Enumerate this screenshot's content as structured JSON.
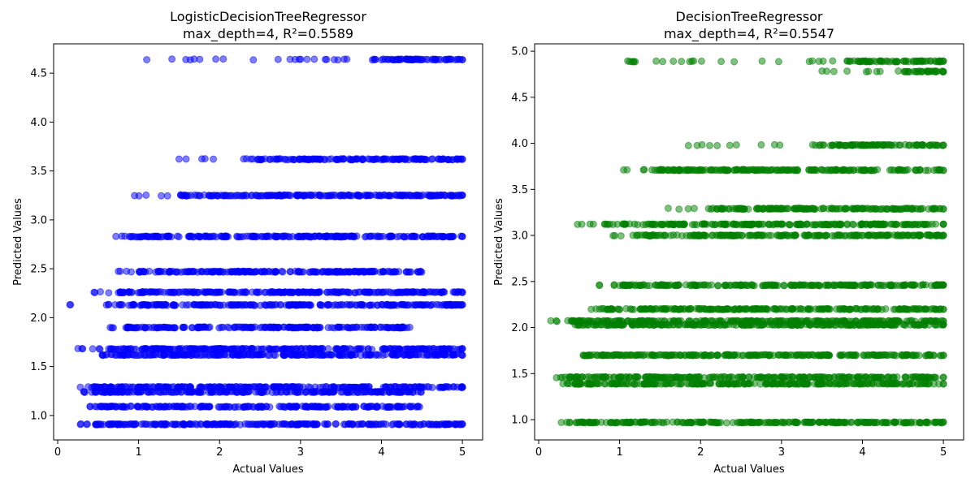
{
  "chart_data": [
    {
      "type": "scatter",
      "title": "LogisticDecisionTreeRegressor",
      "subtitle": "max_depth=4, R²=0.5589",
      "xlabel": "Actual Values",
      "ylabel": "Predicted Values",
      "xlim": [
        -0.05,
        5.25
      ],
      "ylim": [
        0.75,
        4.8
      ],
      "xticks": [
        0,
        1,
        2,
        3,
        4,
        5
      ],
      "yticks": [
        1.0,
        1.5,
        2.0,
        2.5,
        3.0,
        3.5,
        4.0,
        4.5
      ],
      "color": "#0000ff",
      "marker_alpha": 0.5,
      "bands": [
        {
          "y": 4.64,
          "x_min": 1.1,
          "x_max": 5.0,
          "dense_from": 3.9
        },
        {
          "y": 3.62,
          "x_min": 1.5,
          "x_max": 5.0,
          "dense_from": 2.4
        },
        {
          "y": 3.25,
          "x_min": 0.95,
          "x_max": 5.0,
          "dense_from": 1.5
        },
        {
          "y": 2.83,
          "x_min": 0.72,
          "x_max": 5.0,
          "dense_from": 0.9
        },
        {
          "y": 2.47,
          "x_min": 0.75,
          "x_max": 4.5,
          "dense_from": 1.0
        },
        {
          "y": 2.26,
          "x_min": 0.45,
          "x_max": 5.0,
          "dense_from": 0.7
        },
        {
          "y": 2.13,
          "x_min": 0.15,
          "x_max": 5.0,
          "dense_from": 0.75
        },
        {
          "y": 1.9,
          "x_min": 0.65,
          "x_max": 4.35,
          "dense_from": 0.85
        },
        {
          "y": 1.68,
          "x_min": 0.25,
          "x_max": 5.0,
          "dense_from": 0.5
        },
        {
          "y": 1.62,
          "x_min": 0.55,
          "x_max": 5.0,
          "dense_from": 0.6
        },
        {
          "y": 1.29,
          "x_min": 0.28,
          "x_max": 5.0,
          "dense_from": 0.45
        },
        {
          "y": 1.24,
          "x_min": 0.32,
          "x_max": 4.5,
          "dense_from": 0.45
        },
        {
          "y": 1.09,
          "x_min": 0.4,
          "x_max": 4.5,
          "dense_from": 0.5
        },
        {
          "y": 0.91,
          "x_min": 0.28,
          "x_max": 5.0,
          "dense_from": 0.45
        }
      ]
    },
    {
      "type": "scatter",
      "title": "DecisionTreeRegressor",
      "subtitle": "max_depth=4, R²=0.5547",
      "xlabel": "Actual Values",
      "ylabel": "Predicted Values",
      "xlim": [
        -0.05,
        5.25
      ],
      "ylim": [
        0.78,
        5.08
      ],
      "xticks": [
        0,
        1,
        2,
        3,
        4,
        5
      ],
      "yticks": [
        1.0,
        1.5,
        2.0,
        2.5,
        3.0,
        3.5,
        4.0,
        4.5,
        5.0
      ],
      "color": "#008000",
      "marker_alpha": 0.5,
      "bands": [
        {
          "y": 4.89,
          "x_min": 1.1,
          "x_max": 5.0,
          "dense_from": 3.8
        },
        {
          "y": 4.78,
          "x_min": 3.5,
          "x_max": 5.0,
          "dense_from": 4.5
        },
        {
          "y": 3.98,
          "x_min": 1.85,
          "x_max": 5.0,
          "dense_from": 3.5
        },
        {
          "y": 3.71,
          "x_min": 1.05,
          "x_max": 5.0,
          "dense_from": 1.4
        },
        {
          "y": 3.29,
          "x_min": 1.6,
          "x_max": 5.0,
          "dense_from": 2.1
        },
        {
          "y": 3.12,
          "x_min": 0.48,
          "x_max": 5.0,
          "dense_from": 0.8
        },
        {
          "y": 3.0,
          "x_min": 0.92,
          "x_max": 5.0,
          "dense_from": 1.2
        },
        {
          "y": 2.46,
          "x_min": 0.75,
          "x_max": 5.0,
          "dense_from": 1.0
        },
        {
          "y": 2.2,
          "x_min": 0.65,
          "x_max": 5.0,
          "dense_from": 0.8
        },
        {
          "y": 2.07,
          "x_min": 0.15,
          "x_max": 5.0,
          "dense_from": 0.4
        },
        {
          "y": 2.03,
          "x_min": 0.45,
          "x_max": 5.0,
          "dense_from": 0.5
        },
        {
          "y": 1.7,
          "x_min": 0.55,
          "x_max": 5.0,
          "dense_from": 0.6
        },
        {
          "y": 1.46,
          "x_min": 0.22,
          "x_max": 5.0,
          "dense_from": 0.35
        },
        {
          "y": 1.39,
          "x_min": 0.3,
          "x_max": 5.0,
          "dense_from": 0.4
        },
        {
          "y": 0.97,
          "x_min": 0.28,
          "x_max": 5.0,
          "dense_from": 0.4
        }
      ]
    }
  ]
}
